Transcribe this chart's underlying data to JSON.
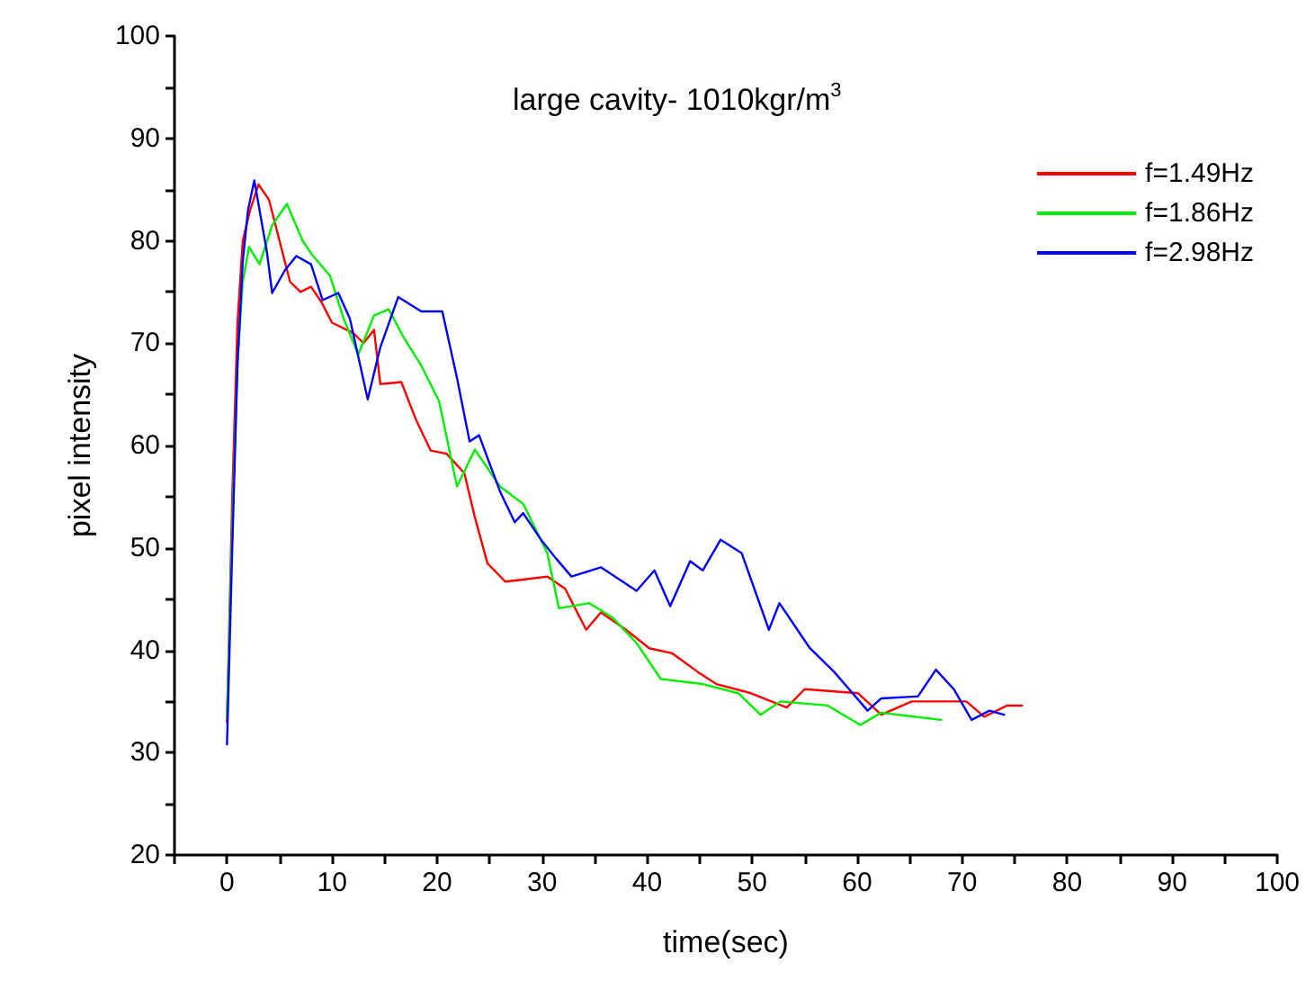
{
  "chart_data": {
    "type": "line",
    "title": "large cavity- 1010kgr/m$^{3}$",
    "xlabel": "time(sec)",
    "ylabel": "pixel intensity",
    "xlim": [
      -5,
      100
    ],
    "xticks": [
      {
        "value": -5,
        "label": null
      },
      0,
      {
        "value": 5,
        "label": null
      },
      10,
      {
        "value": 15,
        "label": null
      },
      20,
      {
        "value": 25,
        "label": null
      },
      30,
      {
        "value": 35,
        "label": null
      },
      40,
      {
        "value": 45,
        "label": null
      },
      50,
      {
        "value": 55,
        "label": null
      },
      60,
      {
        "value": 65,
        "label": null
      },
      70,
      {
        "value": 75,
        "label": null
      },
      80,
      {
        "value": 85,
        "label": null
      },
      90,
      {
        "value": 95,
        "label": null
      },
      100
    ],
    "ylim": [
      20,
      100
    ],
    "yticks": [
      20,
      {
        "value": 25,
        "label": null
      },
      30,
      {
        "value": 35,
        "label": null
      },
      40,
      {
        "value": 45,
        "label": null
      },
      50,
      {
        "value": 55,
        "label": null
      },
      60,
      {
        "value": 65,
        "label": null
      },
      70,
      {
        "value": 75,
        "label": null
      },
      80,
      {
        "value": 85,
        "label": null
      },
      90,
      {
        "value": 95,
        "label": null
      },
      100
    ],
    "grid": false,
    "legend": "top right",
    "marker": "none",
    "line_style": "solid",
    "series": [
      {
        "name": "f=1.49Hz",
        "color": "#ff0000",
        "x": [
          0,
          0.5,
          1,
          1.5,
          2.2,
          3,
          4,
          5,
          6,
          7,
          8,
          9,
          10,
          12,
          13,
          14,
          14.6,
          16.6,
          18,
          19.4,
          20.9,
          22.6,
          23.6,
          24.8,
          26.5,
          28.2,
          30.5,
          32.2,
          34.2,
          35.6,
          38,
          40.2,
          42.4,
          44.8,
          46.6,
          49.9,
          53.3,
          55,
          60.1,
          62.3,
          65.2,
          70.4,
          72.1,
          74.3,
          75.7
        ],
        "values": [
          33,
          55,
          72,
          80,
          83,
          85.5,
          84,
          80,
          76,
          75,
          75.5,
          74,
          72,
          71,
          70,
          71.3,
          66,
          66.2,
          62.5,
          59.5,
          59.2,
          57.3,
          53,
          48.5,
          46.7,
          46.9,
          47.2,
          46,
          42,
          43.7,
          42,
          40.2,
          39.7,
          37.9,
          36.7,
          35.8,
          34.4,
          36.2,
          35.8,
          33.7,
          35,
          35,
          33.5,
          34.6,
          34.6
        ]
      },
      {
        "name": "f=1.86Hz",
        "color": "#00ee00",
        "x": [
          0,
          0.5,
          1,
          1.5,
          2.1,
          3.1,
          4.3,
          5.7,
          7.2,
          8.2,
          9.8,
          11.1,
          12.5,
          14,
          15.4,
          16.8,
          18.5,
          20.2,
          21.9,
          23.6,
          26,
          28.2,
          30.5,
          31.6,
          34.5,
          36.7,
          39,
          41.3,
          45.3,
          48.7,
          50.8,
          52.7,
          57.2,
          60.3,
          62.3,
          68
        ],
        "values": [
          33.5,
          52,
          68,
          76,
          79.4,
          77.7,
          81.5,
          83.6,
          80,
          78.5,
          76.6,
          72.4,
          68.9,
          72.7,
          73.3,
          70.6,
          67.8,
          64.3,
          56,
          59.6,
          56,
          54.3,
          49.5,
          44.1,
          44.6,
          43.2,
          40.7,
          37.2,
          36.7,
          35.8,
          33.7,
          35,
          34.6,
          32.7,
          33.9,
          33.2
        ]
      },
      {
        "name": "f=2.98Hz",
        "color": "#0000ff",
        "x": [
          0,
          0.5,
          1,
          1.5,
          2,
          2.6,
          3.8,
          4.3,
          5.5,
          6.6,
          8,
          9.1,
          10.6,
          11.7,
          13.4,
          14.6,
          16.3,
          18.5,
          20.5,
          21.9,
          23.1,
          24,
          26,
          27.4,
          28.2,
          29.9,
          31.3,
          32.8,
          35.6,
          39,
          40.7,
          42.2,
          44.1,
          45.3,
          47,
          49,
          51.6,
          52.6,
          55.5,
          57.8,
          61,
          62.3,
          65.8,
          67.5,
          69.2,
          70.9,
          72.6,
          74
        ],
        "values": [
          30.8,
          50,
          68,
          78,
          83,
          85.9,
          78.9,
          74.9,
          77.1,
          78.5,
          77.7,
          74.2,
          74.9,
          72.4,
          64.5,
          69.6,
          74.5,
          73.1,
          73.1,
          66.6,
          60.4,
          61,
          55.5,
          52.5,
          53.4,
          50.8,
          49,
          47.2,
          48.1,
          45.8,
          47.8,
          44.3,
          48.7,
          47.8,
          50.8,
          49.5,
          42,
          44.6,
          40.2,
          37.9,
          34.1,
          35.3,
          35.5,
          38.1,
          36.2,
          33.2,
          34.1,
          33.7
        ]
      }
    ]
  }
}
